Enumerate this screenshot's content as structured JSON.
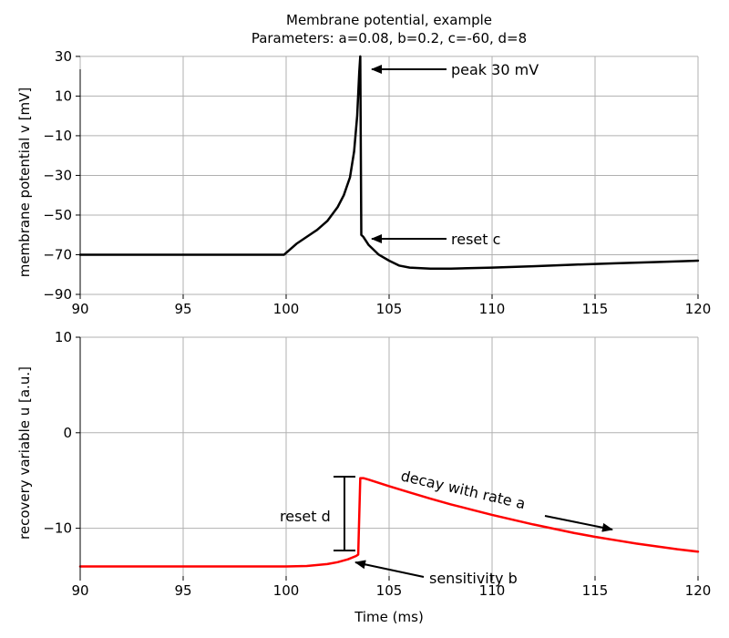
{
  "chart_data": [
    {
      "type": "line",
      "title": "Membrane potential, example",
      "subtitle": "Parameters: a=0.08, b=0.2, c=-60, d=8",
      "xlabel": "",
      "ylabel": "membrane potential v [mV]",
      "xlim": [
        90,
        120
      ],
      "ylim": [
        -90,
        35
      ],
      "xticks": [
        90,
        95,
        100,
        105,
        110,
        115,
        120
      ],
      "xtick_labels": [
        "90",
        "95",
        "100",
        "105",
        "110",
        "115",
        "120"
      ],
      "yticks": [
        30,
        10,
        -10,
        -30,
        -50,
        -70,
        -90
      ],
      "ytick_labels": [
        "30",
        "10",
        "−10",
        "−30",
        "−50",
        "−70",
        "−90"
      ],
      "grid": true,
      "series": [
        {
          "color": "#000000",
          "x": [
            90,
            95,
            99.9,
            100.5,
            101,
            101.5,
            102,
            102.5,
            102.8,
            103.1,
            103.3,
            103.45,
            103.55,
            103.6,
            103.65,
            103.75,
            104,
            104.5,
            105,
            105.5,
            106,
            107,
            108,
            110,
            112,
            114,
            116,
            118,
            120
          ],
          "y": [
            -70,
            -70,
            -70,
            -64.5,
            -61,
            -57.5,
            -53,
            -46,
            -40,
            -31,
            -18,
            0,
            22,
            30,
            -60,
            -61,
            -65,
            -70,
            -73,
            -75.5,
            -76.5,
            -77,
            -77,
            -76.5,
            -75.8,
            -75,
            -74.3,
            -73.7,
            -73
          ]
        }
      ],
      "annotations": [
        {
          "text": "peak 30 mV",
          "xy": [
            103.6,
            30
          ],
          "xytext": [
            108,
            30
          ]
        },
        {
          "text": "reset c",
          "xy": [
            103.8,
            -60
          ],
          "xytext": [
            108,
            -60
          ]
        }
      ]
    },
    {
      "type": "line",
      "title": "",
      "xlabel": "Time (ms)",
      "ylabel": "recovery variable u [a.u.]",
      "xlim": [
        90,
        120
      ],
      "ylim": [
        -15,
        10
      ],
      "xticks": [
        90,
        95,
        100,
        105,
        110,
        115,
        120
      ],
      "xtick_labels": [
        "90",
        "95",
        "100",
        "105",
        "110",
        "115",
        "120"
      ],
      "yticks": [
        10,
        0,
        -10
      ],
      "ytick_labels": [
        "10",
        "0",
        "−10"
      ],
      "grid": true,
      "series": [
        {
          "color": "#ff0000",
          "x": [
            90,
            95,
            100,
            101,
            102,
            102.5,
            103,
            103.4,
            103.5,
            103.6,
            103.75,
            104,
            105,
            106,
            107,
            108,
            109,
            110,
            111,
            112,
            113,
            114,
            115,
            116,
            117,
            118,
            119,
            120
          ],
          "y": [
            -14.0,
            -14.0,
            -14.0,
            -13.95,
            -13.75,
            -13.55,
            -13.25,
            -12.9,
            -12.75,
            -4.75,
            -4.75,
            -4.9,
            -5.6,
            -6.25,
            -6.9,
            -7.5,
            -8.05,
            -8.6,
            -9.1,
            -9.6,
            -10.05,
            -10.5,
            -10.9,
            -11.25,
            -11.6,
            -11.9,
            -12.2,
            -12.45
          ]
        }
      ],
      "annotations": [
        {
          "text": "reset d",
          "bracket": [
            -12.75,
            -4.6
          ],
          "x": 102.7
        },
        {
          "text": "sensitivity b",
          "xy": [
            103.3,
            -13.2
          ],
          "xytext": [
            107,
            -14.8
          ]
        },
        {
          "text": "decay with rate a",
          "xy": [
            116,
            -9.6
          ],
          "xytext": [
            111,
            -6.5
          ],
          "rotation": 13
        }
      ]
    }
  ]
}
